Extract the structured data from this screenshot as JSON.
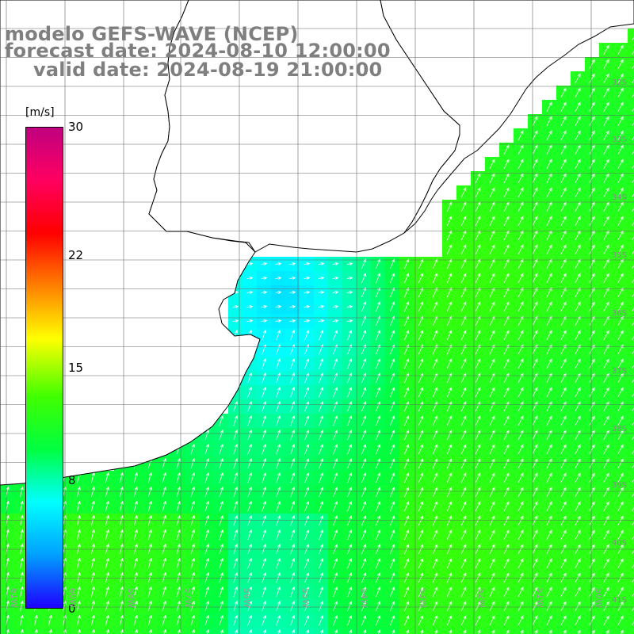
{
  "title": {
    "line1": "modelo GEFS-WAVE (NCEP)",
    "line2": "forecast date: 2024-08-10 12:00:00",
    "line3": "valid date: 2024-08-19 21:00:00"
  },
  "colorbar": {
    "unit": "[m/s]",
    "ticks": [
      {
        "value": 30,
        "label": "30"
      },
      {
        "value": 22,
        "label": "22"
      },
      {
        "value": 15,
        "label": "15"
      },
      {
        "value": 8,
        "label": "8"
      },
      {
        "value": 0,
        "label": "0"
      }
    ],
    "range": [
      0,
      30
    ],
    "colors": [
      "#1e00ff",
      "#00a0ff",
      "#00ffff",
      "#00ff40",
      "#40ff00",
      "#ffff00",
      "#ff8000",
      "#ff0000",
      "#ff0060",
      "#c00080"
    ]
  },
  "axes": {
    "lon_labels": [
      "61W",
      "60W",
      "58W",
      "57W",
      "56W",
      "55W",
      "54W",
      "53W",
      "52W",
      "51W",
      "50W"
    ],
    "lat_labels": [
      "32S",
      "33S",
      "34S",
      "35S",
      "36S",
      "37S",
      "38S",
      "39S",
      "40S",
      "41S"
    ]
  },
  "colors": {
    "land": "#ffffff",
    "grid": "#666666",
    "coast": "#000000",
    "title": "#7f7f7f",
    "arrow": "#ffffff"
  }
}
